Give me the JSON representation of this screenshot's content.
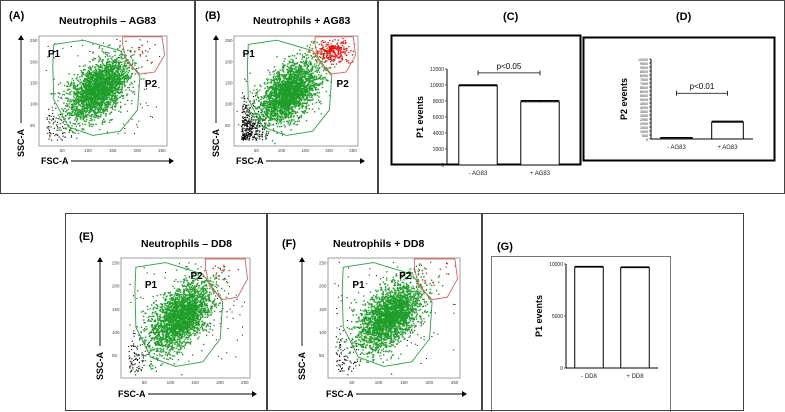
{
  "figure": {
    "panels": {
      "A": {
        "label": "(A)",
        "title": "Neutrophils – AG83",
        "gates": [
          "P1",
          "P2"
        ],
        "xlabel": "FSC-A",
        "ylabel": "SSC-A"
      },
      "B": {
        "label": "(B)",
        "title": "Neutrophils + AG83",
        "gates": [
          "P1",
          "P2"
        ],
        "xlabel": "FSC-A",
        "ylabel": "SSC-A"
      },
      "C": {
        "label": "(C)"
      },
      "D": {
        "label": "(D)"
      },
      "E": {
        "label": "(E)",
        "title": "Neutrophils – DD8",
        "gates": [
          "P1",
          "P2"
        ],
        "xlabel": "FSC-A",
        "ylabel": "SSC-A"
      },
      "F": {
        "label": "(F)",
        "title": "Neutrophils + DD8",
        "gates": [
          "P1",
          "P2"
        ],
        "xlabel": "FSC-A",
        "ylabel": "SSC-A"
      },
      "G": {
        "label": "(G)"
      }
    },
    "flow_ticks": [
      "50",
      "100",
      "150",
      "200",
      "250"
    ],
    "colors": {
      "p1_gate": "#2ea043",
      "p2_gate": "#e05050",
      "p2_events": "#ff0000",
      "events": "#1f9e2a",
      "other_events": "#000000"
    }
  },
  "chart_data": [
    {
      "panel": "C",
      "type": "bar",
      "categories": [
        "- AG83",
        "+ AG83"
      ],
      "values": [
        9900,
        7900
      ],
      "errors": [
        120,
        150
      ],
      "ylabel": "P1 events",
      "ylim": [
        0,
        12000
      ],
      "yticks": [
        "0",
        "2000",
        "4000",
        "6000",
        "8000",
        "10000",
        "12000"
      ],
      "annotation": "p<0.05"
    },
    {
      "panel": "D",
      "type": "bar",
      "categories": [
        "- AG83",
        "+ AG83"
      ],
      "values": [
        150,
        2100
      ],
      "errors": [
        30,
        120
      ],
      "ylabel": "P2 events",
      "ylim": [
        0,
        10000
      ],
      "yticks": [
        "0",
        "500",
        "1000",
        "1500",
        "2000",
        "2500",
        "3000",
        "3500",
        "4000",
        "4500",
        "5000",
        "5500",
        "6000",
        "6500",
        "7000",
        "7500",
        "8000",
        "8500",
        "9000",
        "9500",
        "10000"
      ],
      "annotation": "p<0.01"
    },
    {
      "panel": "G",
      "type": "bar",
      "categories": [
        "- DD8",
        "+ DD8"
      ],
      "values": [
        9700,
        9650
      ],
      "errors": [
        60,
        60
      ],
      "ylabel": "P1 events",
      "ylim": [
        0,
        10000
      ],
      "yticks": [
        "0",
        "5000",
        "10000"
      ],
      "annotation": ""
    }
  ]
}
